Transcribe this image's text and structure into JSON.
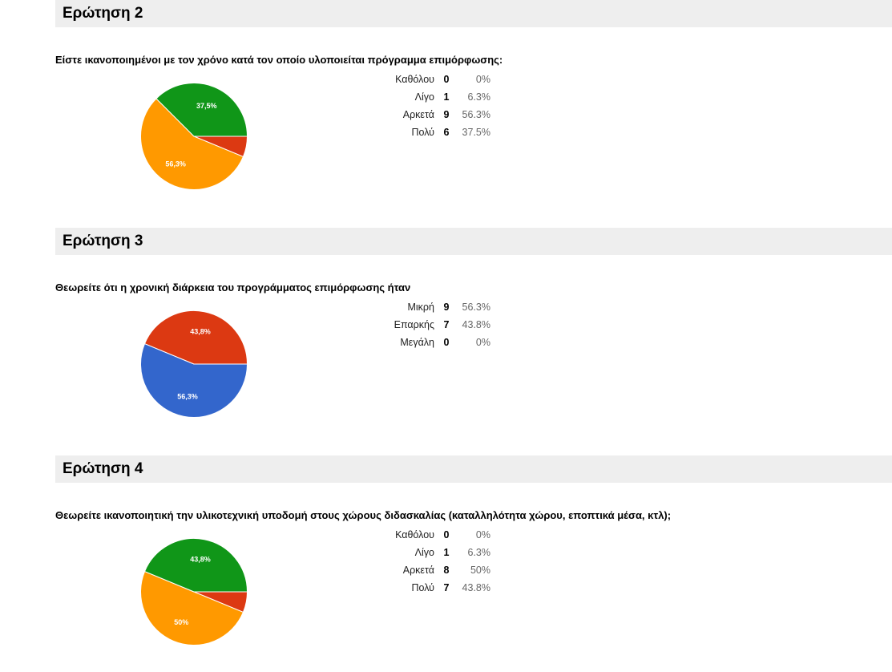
{
  "questions": [
    {
      "header": "Ερώτηση 2",
      "text": "Είστε ικανοποιημένοι με τον χρόνο κατά τον οποίο υλοποιείται πρόγραμμα επιμόρφωσης:",
      "rows": [
        {
          "label": "Καθόλου",
          "count": "0",
          "pct": "0%"
        },
        {
          "label": "Λίγο",
          "count": "1",
          "pct": "6.3%"
        },
        {
          "label": "Αρκετά",
          "count": "9",
          "pct": "56.3%"
        },
        {
          "label": "Πολύ",
          "count": "6",
          "pct": "37.5%"
        }
      ]
    },
    {
      "header": "Ερώτηση 3",
      "text": "Θεωρείτε ότι η χρονική διάρκεια του προγράμματος επιμόρφωσης ήταν",
      "rows": [
        {
          "label": "Μικρή",
          "count": "9",
          "pct": "56.3%"
        },
        {
          "label": "Επαρκής",
          "count": "7",
          "pct": "43.8%"
        },
        {
          "label": "Μεγάλη",
          "count": "0",
          "pct": "0%"
        }
      ]
    },
    {
      "header": "Ερώτηση 4",
      "text": "Θεωρείτε ικανοποιητική την υλικοτεχνική υποδομή στους χώρους διδασκαλίας (καταλληλότητα χώρου, εποπτικά μέσα, κτλ);",
      "rows": [
        {
          "label": "Καθόλου",
          "count": "0",
          "pct": "0%"
        },
        {
          "label": "Λίγο",
          "count": "1",
          "pct": "6.3%"
        },
        {
          "label": "Αρκετά",
          "count": "8",
          "pct": "50%"
        },
        {
          "label": "Πολύ",
          "count": "7",
          "pct": "43.8%"
        }
      ]
    }
  ],
  "chart_data": [
    {
      "type": "pie",
      "title": "",
      "categories": [
        "Καθόλου",
        "Λίγο",
        "Αρκετά",
        "Πολύ"
      ],
      "values": [
        0,
        1,
        9,
        6
      ],
      "colors": [
        "#3366cc",
        "#dc3912",
        "#ff9900",
        "#109618"
      ],
      "slice_labels": [
        "",
        "",
        "56,3%",
        "37,5%"
      ]
    },
    {
      "type": "pie",
      "title": "",
      "categories": [
        "Μικρή",
        "Επαρκής",
        "Μεγάλη"
      ],
      "values": [
        9,
        7,
        0
      ],
      "colors": [
        "#3366cc",
        "#dc3912",
        "#ff9900"
      ],
      "slice_labels": [
        "56,3%",
        "43,8%",
        ""
      ]
    },
    {
      "type": "pie",
      "title": "",
      "categories": [
        "Καθόλου",
        "Λίγο",
        "Αρκετά",
        "Πολύ"
      ],
      "values": [
        0,
        1,
        8,
        7
      ],
      "colors": [
        "#3366cc",
        "#dc3912",
        "#ff9900",
        "#109618"
      ],
      "slice_labels": [
        "",
        "",
        "50%",
        "43,8%"
      ]
    }
  ]
}
